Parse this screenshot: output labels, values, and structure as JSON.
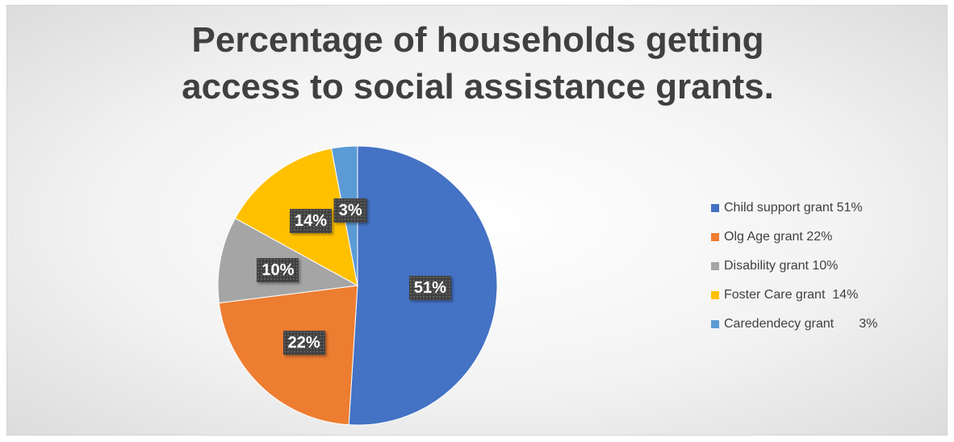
{
  "chart_data": {
    "type": "pie",
    "title": "Percentage of households getting access to social assistance grants.",
    "legend_position": "right",
    "slices": [
      {
        "name": "Child support grant 51%",
        "value": 51,
        "label": "51%",
        "color": "#4472C4"
      },
      {
        "name": "Olg Age grant 22%",
        "value": 22,
        "label": "22%",
        "color": "#ED7D31"
      },
      {
        "name": "Disability grant 10%",
        "value": 10,
        "label": "10%",
        "color": "#A5A5A5"
      },
      {
        "name": "Foster Care grant  14%",
        "value": 14,
        "label": "14%",
        "color": "#FFC000"
      },
      {
        "name": "Caredendecy grant       3%",
        "value": 3,
        "label": "3%",
        "color": "#5B9BD5"
      }
    ]
  }
}
